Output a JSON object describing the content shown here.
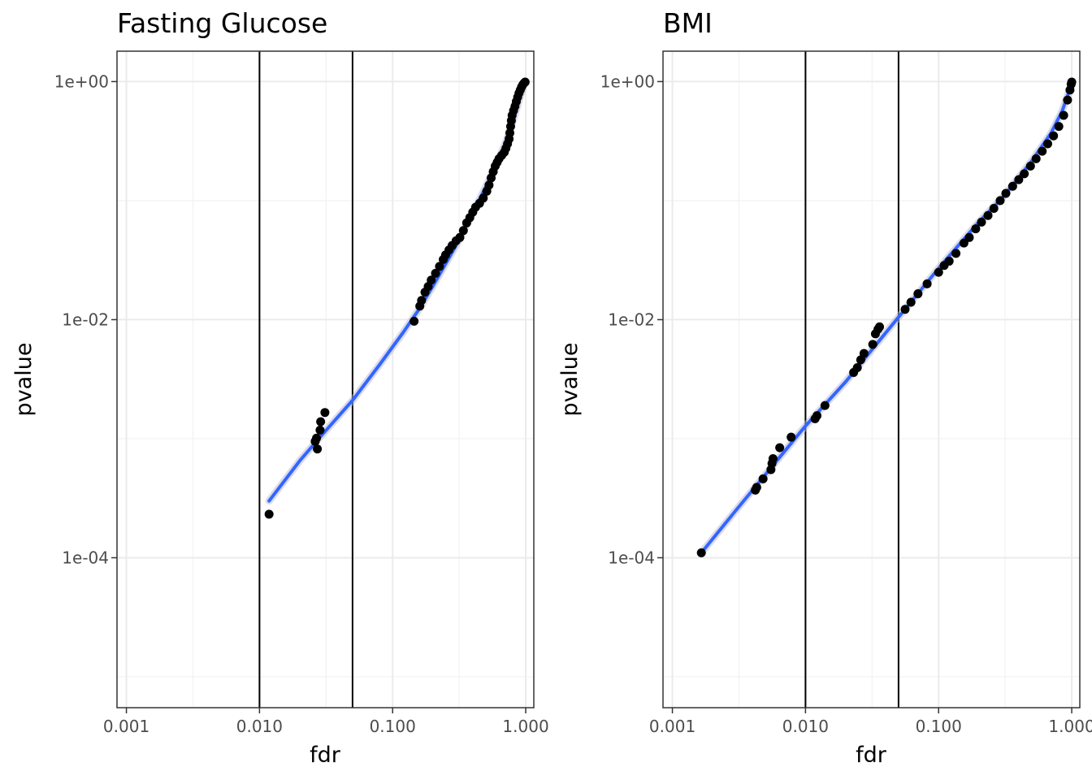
{
  "chart_data": [
    {
      "type": "scatter",
      "title": "Fasting Glucose",
      "xlabel": "fdr",
      "ylabel": "pvalue",
      "x_scale": "log10",
      "y_scale": "log10",
      "xlim": [
        0.00085,
        1.15
      ],
      "ylim": [
        5.5e-06,
        1.8
      ],
      "x_ticks": [
        0.001,
        0.01,
        0.1,
        1
      ],
      "x_tick_labels": [
        "0.001",
        "0.010",
        "0.100",
        "1.000"
      ],
      "y_ticks": [
        0.0001,
        0.01,
        1
      ],
      "y_tick_labels": [
        "1e-04",
        "1e-02",
        "1e+00"
      ],
      "vlines": [
        0.01,
        0.05
      ],
      "grid": true,
      "colors": {
        "points": "#000000",
        "fit": "#3366ff",
        "vline": "#000000"
      },
      "points": [
        [
          0.0118,
          0.000232
        ],
        [
          0.0272,
          0.00082
        ],
        [
          0.0262,
          0.00095
        ],
        [
          0.0268,
          0.00101
        ],
        [
          0.0285,
          0.00118
        ],
        [
          0.0288,
          0.00139
        ],
        [
          0.031,
          0.00166
        ],
        [
          0.145,
          0.0097
        ],
        [
          0.16,
          0.013
        ],
        [
          0.165,
          0.0145
        ],
        [
          0.175,
          0.017
        ],
        [
          0.185,
          0.019
        ],
        [
          0.195,
          0.0215
        ],
        [
          0.21,
          0.0245
        ],
        [
          0.225,
          0.028
        ],
        [
          0.24,
          0.032
        ],
        [
          0.25,
          0.035
        ],
        [
          0.265,
          0.0385
        ],
        [
          0.28,
          0.042
        ],
        [
          0.3,
          0.046
        ],
        [
          0.32,
          0.049
        ],
        [
          0.34,
          0.056
        ],
        [
          0.36,
          0.065
        ],
        [
          0.38,
          0.072
        ],
        [
          0.4,
          0.08
        ],
        [
          0.42,
          0.088
        ],
        [
          0.45,
          0.095
        ],
        [
          0.48,
          0.105
        ],
        [
          0.51,
          0.12
        ],
        [
          0.53,
          0.135
        ],
        [
          0.55,
          0.155
        ],
        [
          0.57,
          0.175
        ],
        [
          0.59,
          0.195
        ],
        [
          0.61,
          0.21
        ],
        [
          0.63,
          0.225
        ],
        [
          0.66,
          0.24
        ],
        [
          0.69,
          0.255
        ],
        [
          0.71,
          0.275
        ],
        [
          0.73,
          0.3
        ],
        [
          0.75,
          0.33
        ],
        [
          0.76,
          0.37
        ],
        [
          0.77,
          0.42
        ],
        [
          0.78,
          0.47
        ],
        [
          0.79,
          0.52
        ],
        [
          0.81,
          0.57
        ],
        [
          0.83,
          0.62
        ],
        [
          0.85,
          0.68
        ],
        [
          0.87,
          0.74
        ],
        [
          0.89,
          0.8
        ],
        [
          0.91,
          0.85
        ],
        [
          0.93,
          0.9
        ],
        [
          0.95,
          0.94
        ],
        [
          0.97,
          0.97
        ],
        [
          0.99,
          0.99
        ]
      ],
      "fit": [
        [
          0.0118,
          0.0003
        ],
        [
          0.02,
          0.00065
        ],
        [
          0.03,
          0.0011
        ],
        [
          0.05,
          0.0021
        ],
        [
          0.08,
          0.0042
        ],
        [
          0.12,
          0.0078
        ],
        [
          0.16,
          0.0125
        ],
        [
          0.2,
          0.019
        ],
        [
          0.3,
          0.042
        ],
        [
          0.4,
          0.079
        ],
        [
          0.5,
          0.13
        ],
        [
          0.6,
          0.2
        ],
        [
          0.7,
          0.3
        ],
        [
          0.8,
          0.46
        ],
        [
          0.9,
          0.72
        ],
        [
          0.95,
          0.87
        ]
      ]
    },
    {
      "type": "scatter",
      "title": "BMI",
      "xlabel": "fdr",
      "ylabel": "pvalue",
      "x_scale": "log10",
      "y_scale": "log10",
      "xlim": [
        0.00085,
        1.15
      ],
      "ylim": [
        5.5e-06,
        1.8
      ],
      "x_ticks": [
        0.001,
        0.01,
        0.1,
        1
      ],
      "x_tick_labels": [
        "0.001",
        "0.010",
        "0.100",
        "1.000"
      ],
      "y_ticks": [
        0.0001,
        0.01,
        1
      ],
      "y_tick_labels": [
        "1e-04",
        "1e-02",
        "1e+00"
      ],
      "vlines": [
        0.01,
        0.05
      ],
      "grid": true,
      "colors": {
        "points": "#000000",
        "fit": "#3366ff",
        "vline": "#000000"
      },
      "points": [
        [
          0.00165,
          0.00011
        ],
        [
          0.0042,
          0.00037
        ],
        [
          0.0043,
          0.00039
        ],
        [
          0.0048,
          0.00046
        ],
        [
          0.0055,
          0.00055
        ],
        [
          0.0056,
          0.00062
        ],
        [
          0.0057,
          0.00068
        ],
        [
          0.0064,
          0.00084
        ],
        [
          0.0078,
          0.00103
        ],
        [
          0.0118,
          0.00147
        ],
        [
          0.0122,
          0.00156
        ],
        [
          0.014,
          0.0019
        ],
        [
          0.023,
          0.0036
        ],
        [
          0.0245,
          0.00395
        ],
        [
          0.026,
          0.0046
        ],
        [
          0.0275,
          0.0052
        ],
        [
          0.032,
          0.0062
        ],
        [
          0.0335,
          0.0076
        ],
        [
          0.035,
          0.0083
        ],
        [
          0.036,
          0.0087
        ],
        [
          0.056,
          0.0122
        ],
        [
          0.062,
          0.014
        ],
        [
          0.07,
          0.0165
        ],
        [
          0.082,
          0.02
        ],
        [
          0.1,
          0.025
        ],
        [
          0.11,
          0.0285
        ],
        [
          0.12,
          0.031
        ],
        [
          0.135,
          0.036
        ],
        [
          0.155,
          0.044
        ],
        [
          0.17,
          0.049
        ],
        [
          0.19,
          0.058
        ],
        [
          0.21,
          0.066
        ],
        [
          0.235,
          0.075
        ],
        [
          0.26,
          0.086
        ],
        [
          0.29,
          0.1
        ],
        [
          0.32,
          0.115
        ],
        [
          0.36,
          0.132
        ],
        [
          0.4,
          0.15
        ],
        [
          0.44,
          0.168
        ],
        [
          0.49,
          0.195
        ],
        [
          0.54,
          0.225
        ],
        [
          0.6,
          0.26
        ],
        [
          0.66,
          0.3
        ],
        [
          0.73,
          0.35
        ],
        [
          0.8,
          0.42
        ],
        [
          0.87,
          0.52
        ],
        [
          0.93,
          0.7
        ],
        [
          0.97,
          0.85
        ],
        [
          0.99,
          0.95
        ],
        [
          1.0,
          0.99
        ]
      ],
      "fit": [
        [
          0.00165,
          0.00011
        ],
        [
          0.003,
          0.00025
        ],
        [
          0.006,
          0.00064
        ],
        [
          0.01,
          0.00128
        ],
        [
          0.02,
          0.003
        ],
        [
          0.05,
          0.0105
        ],
        [
          0.1,
          0.027
        ],
        [
          0.2,
          0.066
        ],
        [
          0.3,
          0.105
        ],
        [
          0.5,
          0.215
        ],
        [
          0.7,
          0.37
        ],
        [
          0.85,
          0.57
        ],
        [
          1.0,
          0.96
        ]
      ]
    }
  ]
}
